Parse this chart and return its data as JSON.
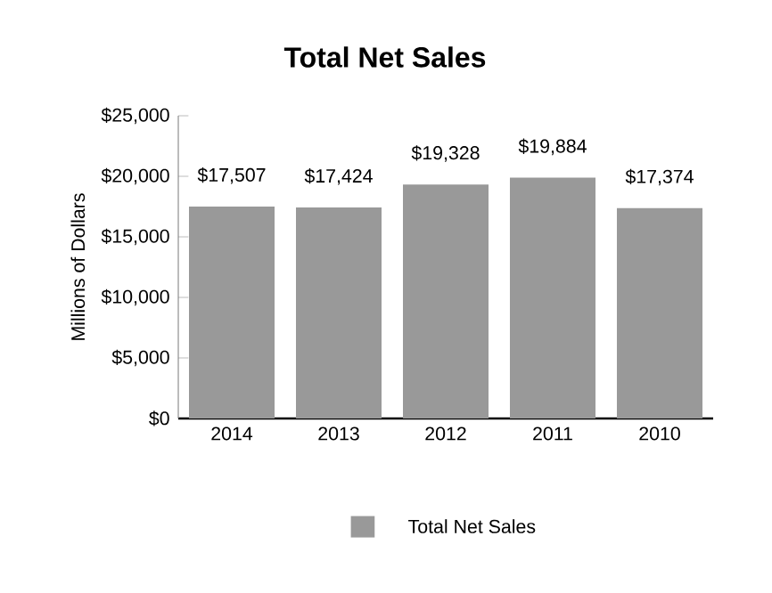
{
  "chart_data": {
    "type": "bar",
    "title": "Total Net Sales",
    "ylabel": "Millions of Dollars",
    "categories": [
      "2014",
      "2013",
      "2012",
      "2011",
      "2010"
    ],
    "series": [
      {
        "name": "Total Net Sales",
        "color": "#999999",
        "values": [
          17507,
          17424,
          19328,
          19884,
          17374
        ],
        "value_labels": [
          "$17,507",
          "$17,424",
          "$19,328",
          "$19,884",
          "$17,374"
        ]
      }
    ],
    "ylim": [
      0,
      25000
    ],
    "yticks": [
      {
        "value": 0,
        "label": "$0"
      },
      {
        "value": 5000,
        "label": "$5,000"
      },
      {
        "value": 10000,
        "label": "$10,000"
      },
      {
        "value": 15000,
        "label": "$15,000"
      },
      {
        "value": 20000,
        "label": "$20,000"
      },
      {
        "value": 25000,
        "label": "$25,000"
      }
    ],
    "grid": false,
    "legend": "bottom"
  }
}
